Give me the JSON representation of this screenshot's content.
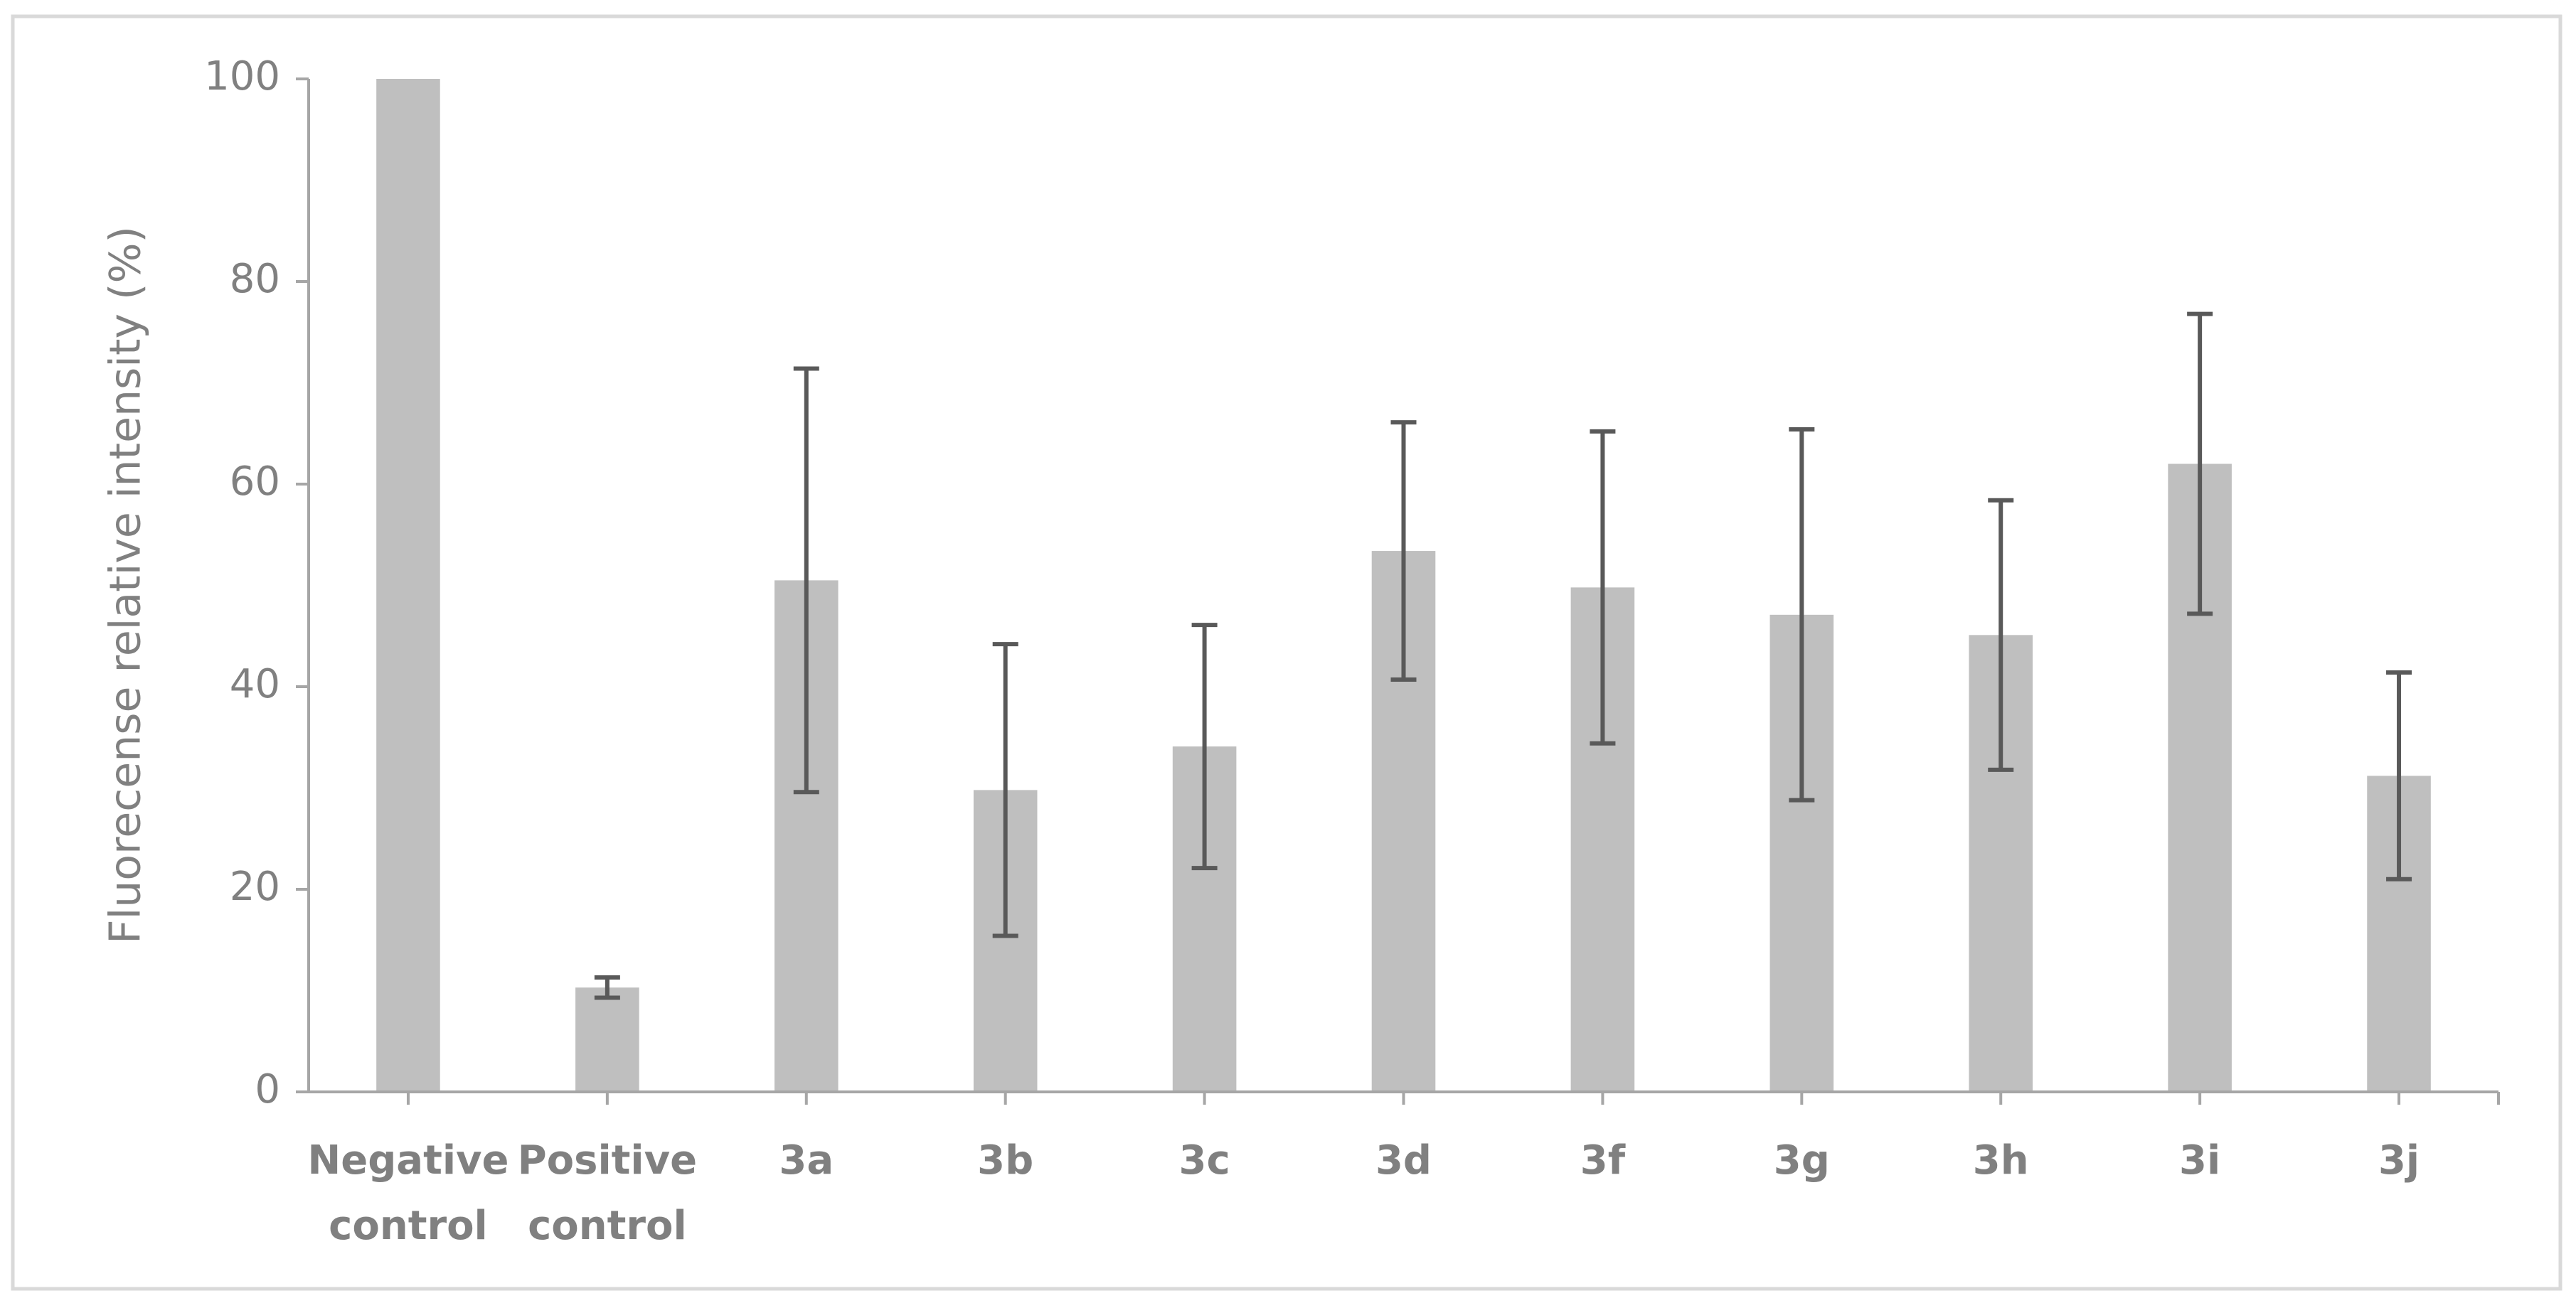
{
  "chart_data": {
    "type": "bar",
    "y_label": "Fluorecense relative intensity (%)",
    "categories": [
      "Negative control",
      "Positive control",
      "3a",
      "3b",
      "3c",
      "3d",
      "3f",
      "3g",
      "3h",
      "3i",
      "3j"
    ],
    "values": [
      100,
      10.3,
      50.5,
      29.8,
      34.1,
      53.4,
      49.8,
      47.1,
      45.1,
      62.0,
      31.2
    ],
    "errors": [
      null,
      1.0,
      20.9,
      14.4,
      12.0,
      12.7,
      15.4,
      18.3,
      13.3,
      14.8,
      10.2
    ],
    "color": "#bfbfbf",
    "error_color": "#595959",
    "ylim": [
      0,
      100
    ],
    "yticks": [
      0,
      20,
      40,
      60,
      80,
      100
    ],
    "grid": false
  }
}
